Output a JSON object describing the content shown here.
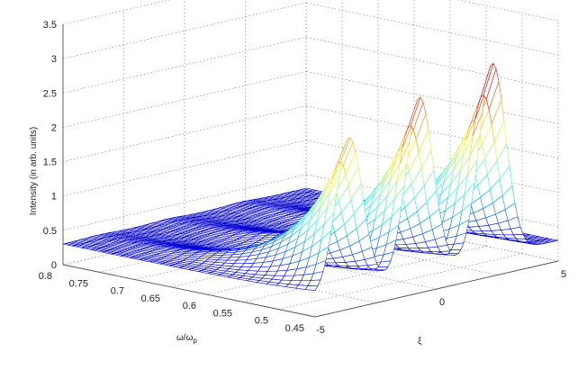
{
  "chart_data": {
    "type": "surface",
    "zlabel": "Intensity (in arb. units)",
    "xlabel": "ω/ω",
    "xlabel_sub": "p",
    "ylabel": "ξ",
    "xlim": [
      0.45,
      0.8
    ],
    "ylim": [
      -5,
      5
    ],
    "zlim": [
      0,
      3.5
    ],
    "x_ticks": [
      "0.45",
      "0.5",
      "0.55",
      "0.6",
      "0.65",
      "0.7",
      "0.75",
      "0.8"
    ],
    "y_ticks": [
      "-5",
      "0",
      "5"
    ],
    "z_ticks": [
      "0",
      "0.5",
      "1",
      "1.5",
      "2",
      "2.5",
      "3",
      "3.5"
    ],
    "grid": true,
    "colormap": "jet",
    "surface": {
      "description_values": {
        "peak_positions_xi": [
          -3.6,
          -0.7,
          2.3
        ],
        "peak_heights": [
          2.5,
          2.85,
          3.1
        ],
        "peak_frequency": 0.45,
        "baseline_intensity": 0.3
      }
    }
  }
}
